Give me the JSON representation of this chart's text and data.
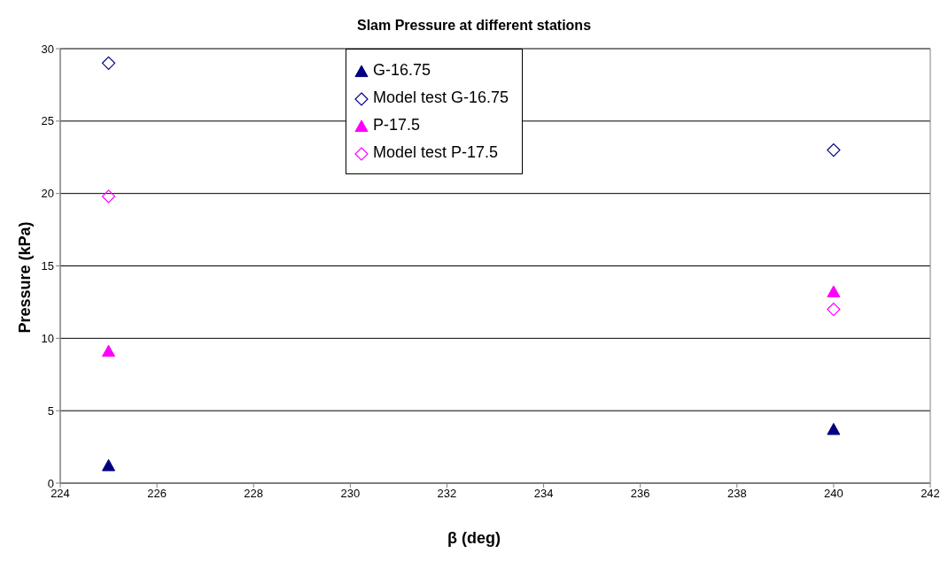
{
  "chart_data": {
    "type": "scatter",
    "title": "Slam Pressure at different stations",
    "xlabel": "β (deg)",
    "ylabel": "Pressure (kPa)",
    "x": [
      225,
      240
    ],
    "xlim": [
      224,
      242
    ],
    "xticks": [
      224,
      226,
      228,
      230,
      232,
      234,
      236,
      238,
      240,
      242
    ],
    "ylim": [
      0,
      30
    ],
    "yticks": [
      0,
      5,
      10,
      15,
      20,
      25,
      30
    ],
    "grid": "y",
    "legend": "top",
    "series": [
      {
        "name": "G-16.75",
        "color": "#000080",
        "marker": "triangle",
        "values": [
          1.2,
          3.7
        ]
      },
      {
        "name": "Model test G-16.75",
        "color": "#000080",
        "marker": "diamond",
        "values": [
          29,
          23
        ]
      },
      {
        "name": "P-17.5",
        "color": "#ff00ff",
        "marker": "triangle",
        "values": [
          9.1,
          13.2
        ]
      },
      {
        "name": "Model test P-17.5",
        "color": "#ff00ff",
        "marker": "diamond",
        "values": [
          19.8,
          12.0
        ]
      }
    ]
  }
}
